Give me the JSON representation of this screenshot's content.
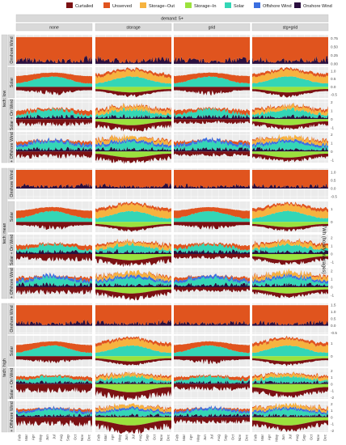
{
  "legend": [
    {
      "label": "Curtailed",
      "color": "#7b1113"
    },
    {
      "label": "Unserved",
      "color": "#e0541e"
    },
    {
      "label": "Storage−Out",
      "color": "#f6b33f"
    },
    {
      "label": "Storage−In",
      "color": "#9be23d"
    },
    {
      "label": "Solar",
      "color": "#33d6b6"
    },
    {
      "label": "Offshore Wind",
      "color": "#3b6fe0"
    },
    {
      "label": "Onshore Wind",
      "color": "#2a0f3f"
    }
  ],
  "chart_data": {
    "type": "area",
    "demand_label": "demand: 5+",
    "columns": [
      "none",
      "storage",
      "grid",
      "stg+grid"
    ],
    "tech_groups": [
      "tech: low",
      "tech: mean",
      "tech: high"
    ],
    "row_labels": [
      "Onshore Wind",
      "Solar",
      "Solar + On Wind",
      "+ Offshore Wind"
    ],
    "x_ticks": [
      "Feb",
      "Mar",
      "Apr",
      "May",
      "Jun",
      "Jul",
      "Aug",
      "Sep",
      "Oct",
      "Nov",
      "Dec"
    ],
    "ylabel": "TWh (hourly averages)",
    "rows": [
      {
        "ticks": [
          "0.75",
          "0.50",
          "0.25",
          "0.00"
        ],
        "ylim": [
          -0.05,
          0.85
        ]
      },
      {
        "ticks": [
          "1.0",
          "0.5",
          "0.0",
          "-0.5"
        ],
        "ylim": [
          -0.7,
          1.25
        ]
      },
      {
        "ticks": [
          "2",
          "1",
          "0",
          "-1"
        ],
        "ylim": [
          -1.3,
          2.3
        ]
      },
      {
        "ticks": [
          "2",
          "1",
          "0",
          "-1"
        ],
        "ylim": [
          -1.3,
          2.3
        ]
      },
      {
        "ticks": [
          "1.0",
          "0.5",
          "0.0",
          "-0.5"
        ],
        "ylim": [
          -0.65,
          1.25
        ]
      },
      {
        "ticks": [
          "1",
          "0"
        ],
        "ylim": [
          -0.8,
          1.6
        ]
      },
      {
        "ticks": [
          "2",
          "1",
          "0",
          "-1"
        ],
        "ylim": [
          -1.4,
          2.4
        ]
      },
      {
        "ticks": [
          "2",
          "1",
          "0",
          "-1"
        ],
        "ylim": [
          -1.4,
          2.4
        ]
      },
      {
        "ticks": [
          "1.5",
          "1.0",
          "0.5",
          "0.0",
          "-0.5"
        ],
        "ylim": [
          -0.6,
          1.6
        ]
      },
      {
        "ticks": [
          "1",
          "0"
        ],
        "ylim": [
          -0.8,
          1.6
        ]
      },
      {
        "ticks": [
          "2",
          "1",
          "0",
          "-1",
          "-2"
        ],
        "ylim": [
          -2.2,
          2.4
        ]
      },
      {
        "ticks": [
          "2",
          "1",
          "0",
          "-1",
          "-2"
        ],
        "ylim": [
          -2.2,
          2.4
        ]
      }
    ]
  }
}
